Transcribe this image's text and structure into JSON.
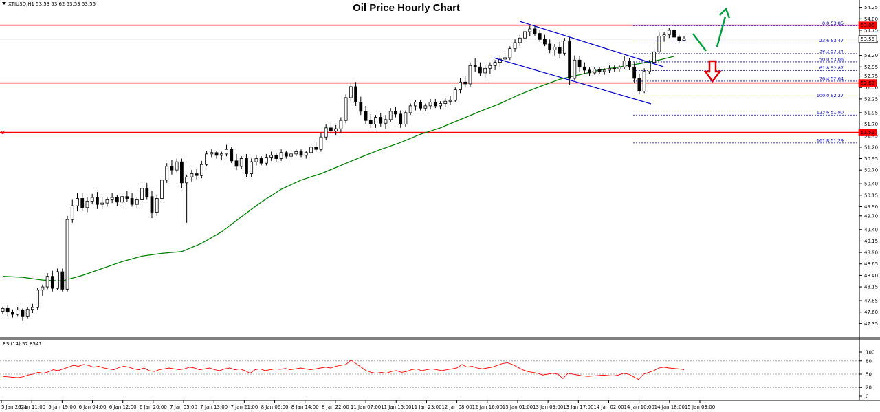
{
  "header": {
    "symbol_text": "XTIUSD,H1  53.53 53.62 53.53 53.56",
    "title": "Oil Price Hourly Chart"
  },
  "colors": {
    "background": "#ffffff",
    "candle_up": "#ffffff",
    "candle_down": "#000000",
    "candle_border": "#000000",
    "moving_average": "#008000",
    "horizontal_levels": "#ff0000",
    "channel": "#0000cc",
    "fib_lines": "#0000cc",
    "rsi_line": "#ff0000",
    "bullish_arrow": "#00a040",
    "bearish_arrow": "#e00000"
  },
  "chart_data": {
    "type": "candlestick",
    "instrument": "XTIUSD",
    "timeframe": "H1",
    "title": "Oil Price Hourly Chart",
    "ylim": [
      47.1,
      54.32
    ],
    "y_ticks": [
      "54.25",
      "54.00",
      "53.75",
      "53.50",
      "53.20",
      "52.95",
      "52.75",
      "52.50",
      "52.25",
      "51.95",
      "51.70",
      "51.45",
      "51.20",
      "50.95",
      "50.70",
      "50.40",
      "50.15",
      "49.90",
      "49.70",
      "49.40",
      "49.15",
      "48.90",
      "48.65",
      "48.40",
      "48.15",
      "47.85",
      "47.60",
      "47.35"
    ],
    "x_ticks": [
      "5 Jan 2021",
      "5 Jan 11:00",
      "5 Jan 19:00",
      "6 Jan 04:00",
      "6 Jan 12:00",
      "6 Jan 20:00",
      "7 Jan 05:00",
      "7 Jan 13:00",
      "7 Jan 21:00",
      "8 Jan 06:00",
      "8 Jan 14:00",
      "8 Jan 22:00",
      "11 Jan 07:00",
      "11 Jan 15:00",
      "11 Jan 23:00",
      "12 Jan 08:00",
      "12 Jan 16:00",
      "13 Jan 01:00",
      "13 Jan 09:00",
      "13 Jan 17:00",
      "14 Jan 02:00",
      "14 Jan 10:00",
      "14 Jan 18:00",
      "15 Jan 03:00"
    ],
    "candles": [
      [
        47.62,
        47.72,
        47.55,
        47.68
      ],
      [
        47.68,
        47.75,
        47.52,
        47.6
      ],
      [
        47.6,
        47.66,
        47.48,
        47.55
      ],
      [
        47.55,
        47.7,
        47.5,
        47.65
      ],
      [
        47.65,
        47.68,
        47.42,
        47.5
      ],
      [
        47.5,
        47.7,
        47.45,
        47.66
      ],
      [
        47.66,
        47.78,
        47.58,
        47.7
      ],
      [
        47.7,
        48.12,
        47.65,
        48.08
      ],
      [
        48.08,
        48.2,
        47.95,
        48.15
      ],
      [
        48.15,
        48.45,
        48.1,
        48.38
      ],
      [
        48.38,
        48.5,
        48.05,
        48.12
      ],
      [
        48.12,
        48.55,
        48.08,
        48.48
      ],
      [
        48.48,
        48.55,
        48.05,
        48.1
      ],
      [
        48.1,
        49.7,
        48.05,
        49.62
      ],
      [
        49.62,
        50.05,
        49.55,
        49.92
      ],
      [
        49.92,
        50.2,
        49.8,
        50.08
      ],
      [
        50.08,
        50.2,
        49.8,
        49.88
      ],
      [
        49.88,
        50.1,
        49.78,
        50.02
      ],
      [
        50.02,
        50.18,
        49.95,
        50.1
      ],
      [
        50.1,
        50.22,
        49.85,
        49.95
      ],
      [
        49.95,
        50.1,
        49.85,
        49.98
      ],
      [
        49.98,
        50.12,
        49.9,
        50.05
      ],
      [
        50.05,
        50.2,
        49.98,
        50.1
      ],
      [
        50.1,
        50.15,
        49.92,
        50.0
      ],
      [
        50.0,
        50.18,
        49.95,
        50.12
      ],
      [
        50.12,
        50.25,
        50.0,
        50.08
      ],
      [
        50.08,
        50.2,
        49.9,
        49.95
      ],
      [
        49.95,
        50.12,
        49.88,
        50.05
      ],
      [
        50.05,
        50.4,
        50.0,
        50.3
      ],
      [
        50.3,
        50.42,
        50.05,
        50.12
      ],
      [
        50.12,
        50.25,
        49.65,
        49.78
      ],
      [
        49.78,
        50.15,
        49.7,
        50.08
      ],
      [
        50.08,
        50.55,
        50.0,
        50.48
      ],
      [
        50.48,
        50.85,
        50.42,
        50.78
      ],
      [
        50.78,
        50.92,
        50.6,
        50.7
      ],
      [
        50.7,
        50.95,
        50.65,
        50.88
      ],
      [
        50.88,
        50.95,
        50.3,
        50.42
      ],
      [
        50.42,
        50.6,
        49.55,
        50.55
      ],
      [
        50.55,
        50.7,
        50.45,
        50.62
      ],
      [
        50.62,
        50.72,
        50.5,
        50.58
      ],
      [
        50.58,
        50.9,
        50.52,
        50.82
      ],
      [
        50.82,
        51.12,
        50.78,
        51.05
      ],
      [
        51.05,
        51.15,
        50.98,
        51.08
      ],
      [
        51.08,
        51.12,
        50.95,
        51.02
      ],
      [
        51.02,
        51.1,
        50.92,
        51.05
      ],
      [
        51.05,
        51.25,
        51.0,
        51.15
      ],
      [
        51.15,
        51.2,
        50.85,
        50.9
      ],
      [
        50.9,
        51.05,
        50.7,
        50.78
      ],
      [
        50.78,
        51.0,
        50.72,
        50.95
      ],
      [
        50.95,
        51.05,
        50.55,
        50.62
      ],
      [
        50.62,
        50.95,
        50.55,
        50.88
      ],
      [
        50.88,
        51.02,
        50.8,
        50.95
      ],
      [
        50.95,
        51.0,
        50.8,
        50.85
      ],
      [
        50.85,
        51.05,
        50.8,
        50.98
      ],
      [
        50.98,
        51.1,
        50.9,
        51.02
      ],
      [
        51.02,
        51.08,
        50.88,
        50.95
      ],
      [
        50.95,
        51.15,
        50.9,
        51.08
      ],
      [
        51.08,
        51.12,
        50.95,
        51.0
      ],
      [
        51.0,
        51.1,
        50.92,
        51.05
      ],
      [
        51.05,
        51.15,
        51.0,
        51.1
      ],
      [
        51.1,
        51.15,
        50.98,
        51.02
      ],
      [
        51.02,
        51.12,
        50.95,
        51.08
      ],
      [
        51.08,
        51.25,
        51.02,
        51.2
      ],
      [
        51.2,
        51.32,
        51.1,
        51.15
      ],
      [
        51.15,
        51.5,
        51.1,
        51.42
      ],
      [
        51.42,
        51.7,
        51.35,
        51.62
      ],
      [
        51.62,
        51.75,
        51.48,
        51.55
      ],
      [
        51.55,
        51.68,
        51.45,
        51.6
      ],
      [
        51.6,
        51.85,
        51.5,
        51.78
      ],
      [
        51.78,
        52.35,
        51.72,
        52.28
      ],
      [
        52.28,
        52.6,
        52.2,
        52.52
      ],
      [
        52.52,
        52.62,
        52.1,
        52.18
      ],
      [
        52.18,
        52.3,
        51.9,
        51.98
      ],
      [
        51.98,
        52.1,
        51.7,
        51.78
      ],
      [
        51.78,
        51.92,
        51.62,
        51.7
      ],
      [
        51.7,
        51.9,
        51.62,
        51.85
      ],
      [
        51.85,
        51.95,
        51.65,
        51.72
      ],
      [
        51.72,
        51.9,
        51.6,
        51.8
      ],
      [
        51.8,
        52.05,
        51.75,
        51.98
      ],
      [
        51.98,
        52.08,
        51.85,
        51.92
      ],
      [
        51.92,
        52.0,
        51.62,
        51.7
      ],
      [
        51.7,
        52.0,
        51.65,
        51.95
      ],
      [
        51.95,
        52.15,
        51.9,
        52.1
      ],
      [
        52.1,
        52.22,
        52.0,
        52.18
      ],
      [
        52.18,
        52.22,
        52.0,
        52.05
      ],
      [
        52.05,
        52.15,
        51.98,
        52.1
      ],
      [
        52.1,
        52.25,
        52.02,
        52.18
      ],
      [
        52.18,
        52.25,
        52.05,
        52.1
      ],
      [
        52.1,
        52.2,
        52.02,
        52.15
      ],
      [
        52.15,
        52.28,
        52.08,
        52.2
      ],
      [
        52.2,
        52.32,
        52.12,
        52.22
      ],
      [
        52.22,
        52.5,
        52.18,
        52.45
      ],
      [
        52.45,
        52.7,
        52.38,
        52.62
      ],
      [
        52.62,
        52.75,
        52.5,
        52.58
      ],
      [
        52.58,
        53.05,
        52.52,
        52.98
      ],
      [
        52.98,
        53.15,
        52.85,
        52.95
      ],
      [
        52.95,
        53.05,
        52.75,
        52.82
      ],
      [
        52.82,
        53.0,
        52.7,
        52.92
      ],
      [
        52.92,
        53.05,
        52.8,
        52.98
      ],
      [
        52.98,
        53.1,
        52.88,
        53.05
      ],
      [
        53.05,
        53.2,
        52.95,
        53.12
      ],
      [
        53.12,
        53.22,
        53.0,
        53.15
      ],
      [
        53.15,
        53.4,
        53.1,
        53.35
      ],
      [
        53.35,
        53.55,
        53.28,
        53.48
      ],
      [
        53.48,
        53.65,
        53.4,
        53.58
      ],
      [
        53.58,
        53.8,
        53.5,
        53.72
      ],
      [
        53.72,
        53.85,
        53.62,
        53.78
      ],
      [
        53.78,
        53.84,
        53.62,
        53.68
      ],
      [
        53.68,
        53.75,
        53.5,
        53.55
      ],
      [
        53.55,
        53.65,
        53.4,
        53.45
      ],
      [
        53.45,
        53.55,
        53.25,
        53.32
      ],
      [
        53.32,
        53.45,
        53.2,
        53.38
      ],
      [
        53.38,
        53.5,
        53.15,
        53.25
      ],
      [
        53.25,
        53.58,
        53.2,
        53.52
      ],
      [
        53.52,
        53.6,
        52.55,
        52.7
      ],
      [
        52.7,
        53.2,
        52.65,
        53.1
      ],
      [
        53.1,
        53.18,
        52.85,
        52.95
      ],
      [
        52.95,
        53.05,
        52.8,
        52.88
      ],
      [
        52.88,
        52.95,
        52.75,
        52.82
      ],
      [
        52.82,
        52.95,
        52.78,
        52.9
      ],
      [
        52.9,
        52.95,
        52.8,
        52.85
      ],
      [
        52.85,
        52.92,
        52.78,
        52.88
      ],
      [
        52.88,
        52.98,
        52.82,
        52.92
      ],
      [
        52.92,
        52.98,
        52.85,
        52.9
      ],
      [
        52.9,
        53.0,
        52.85,
        52.95
      ],
      [
        52.95,
        53.18,
        52.9,
        53.08
      ],
      [
        53.08,
        53.15,
        52.88,
        52.95
      ],
      [
        52.95,
        53.05,
        52.6,
        52.7
      ],
      [
        52.7,
        52.8,
        52.35,
        52.42
      ],
      [
        52.42,
        52.92,
        52.38,
        52.85
      ],
      [
        52.85,
        53.1,
        52.8,
        53.05
      ],
      [
        53.05,
        53.35,
        53.0,
        53.28
      ],
      [
        53.28,
        53.7,
        53.22,
        53.62
      ],
      [
        53.62,
        53.72,
        53.5,
        53.65
      ],
      [
        53.65,
        53.8,
        53.58,
        53.75
      ],
      [
        53.75,
        53.82,
        53.55,
        53.6
      ],
      [
        53.6,
        53.65,
        53.48,
        53.53
      ],
      [
        53.53,
        53.62,
        53.53,
        53.56
      ]
    ],
    "moving_average": [
      [
        0,
        48.38
      ],
      [
        4,
        48.36
      ],
      [
        8,
        48.3
      ],
      [
        12,
        48.28
      ],
      [
        16,
        48.4
      ],
      [
        20,
        48.55
      ],
      [
        24,
        48.7
      ],
      [
        28,
        48.82
      ],
      [
        32,
        48.88
      ],
      [
        36,
        48.92
      ],
      [
        40,
        49.1
      ],
      [
        44,
        49.35
      ],
      [
        48,
        49.68
      ],
      [
        52,
        50.0
      ],
      [
        56,
        50.28
      ],
      [
        60,
        50.48
      ],
      [
        64,
        50.62
      ],
      [
        68,
        50.8
      ],
      [
        72,
        50.98
      ],
      [
        76,
        51.15
      ],
      [
        80,
        51.3
      ],
      [
        84,
        51.48
      ],
      [
        88,
        51.62
      ],
      [
        92,
        51.8
      ],
      [
        96,
        51.98
      ],
      [
        100,
        52.15
      ],
      [
        104,
        52.35
      ],
      [
        108,
        52.52
      ],
      [
        112,
        52.68
      ],
      [
        116,
        52.78
      ],
      [
        120,
        52.88
      ],
      [
        124,
        52.95
      ],
      [
        128,
        53.02
      ],
      [
        132,
        53.1
      ],
      [
        135,
        53.18
      ]
    ],
    "horizontal_levels": [
      53.86,
      52.6,
      51.52
    ],
    "fibonacci": [
      {
        "label": "0.0 53.85",
        "price": 53.85
      },
      {
        "label": "23.6 53.47",
        "price": 53.47
      },
      {
        "label": "38.2 53.24",
        "price": 53.24
      },
      {
        "label": "50.0 53.06",
        "price": 53.06
      },
      {
        "label": "61.8 52.87",
        "price": 52.87
      },
      {
        "label": "76.4 52.64",
        "price": 52.64
      },
      {
        "label": "100.0 52.27",
        "price": 52.27
      },
      {
        "label": "123.6 51.90",
        "price": 51.9
      },
      {
        "label": "161.8 51.29",
        "price": 51.29
      }
    ],
    "price_markers": [
      "53.86",
      "53.56",
      "52.60",
      "51.52"
    ],
    "rsi": {
      "label": "RSI(14) 57.8541",
      "ylim": [
        0,
        100
      ],
      "levels": [
        80,
        50,
        20
      ],
      "y_ticks": [
        "100",
        "80",
        "50",
        "20",
        "0"
      ],
      "values": [
        45,
        44,
        43,
        42,
        44,
        48,
        50,
        54,
        52,
        55,
        60,
        58,
        62,
        66,
        70,
        68,
        72,
        70,
        66,
        68,
        64,
        62,
        60,
        65,
        68,
        66,
        62,
        60,
        64,
        58,
        56,
        60,
        62,
        64,
        62,
        60,
        62,
        66,
        64,
        60,
        62,
        64,
        60,
        58,
        62,
        64,
        60,
        62,
        58,
        52,
        60,
        62,
        58,
        60,
        62,
        61,
        63,
        60,
        62,
        64,
        62,
        60,
        62,
        64,
        66,
        64,
        68,
        70,
        72,
        82,
        74,
        66,
        58,
        54,
        52,
        54,
        52,
        56,
        58,
        54,
        56,
        60,
        62,
        58,
        60,
        62,
        60,
        58,
        60,
        62,
        64,
        72,
        66,
        68,
        64,
        62,
        64,
        66,
        70,
        74,
        76,
        72,
        66,
        60,
        56,
        54,
        52,
        48,
        50,
        52,
        50,
        40,
        52,
        50,
        48,
        46,
        45,
        46,
        47,
        48,
        47,
        46,
        48,
        52,
        50,
        44,
        38,
        50,
        54,
        58,
        64,
        66,
        64,
        63,
        62,
        60
      ]
    }
  }
}
